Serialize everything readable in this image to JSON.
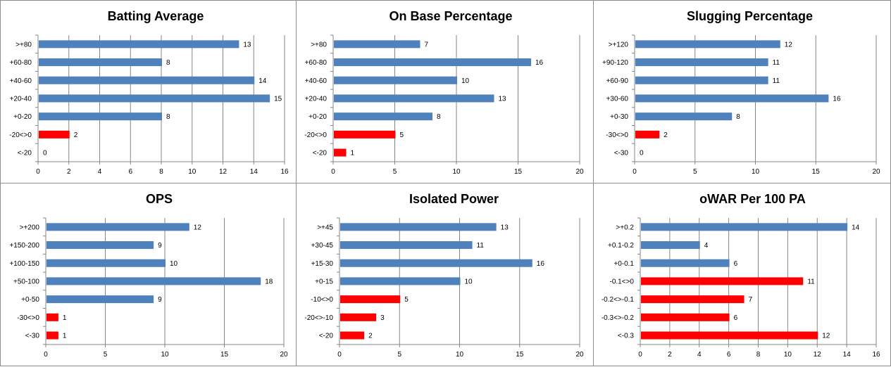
{
  "colors": {
    "positive": "#4f81bd",
    "negative": "#ff0000",
    "grid": "#868686",
    "axis": "#868686"
  },
  "chart_data": [
    {
      "type": "bar",
      "orientation": "horizontal",
      "title": "Batting Average",
      "categories": [
        ">+80",
        "+60-80",
        "+40-60",
        "+20-40",
        "+0-20",
        "-20<>0",
        "<-20"
      ],
      "values": [
        13,
        8,
        14,
        15,
        8,
        2,
        0
      ],
      "negative_from_index": 5,
      "xlim": [
        0,
        16
      ],
      "xticks": [
        0,
        2,
        4,
        6,
        8,
        10,
        12,
        14,
        16
      ],
      "grid": true
    },
    {
      "type": "bar",
      "orientation": "horizontal",
      "title": "On Base Percentage",
      "categories": [
        ">+80",
        "+60-80",
        "+40-60",
        "+20-40",
        "+0-20",
        "-20<>0",
        "<-20"
      ],
      "values": [
        7,
        16,
        10,
        13,
        8,
        5,
        1
      ],
      "negative_from_index": 5,
      "xlim": [
        0,
        20
      ],
      "xticks": [
        0,
        5,
        10,
        15,
        20
      ],
      "grid": true
    },
    {
      "type": "bar",
      "orientation": "horizontal",
      "title": "Slugging Percentage",
      "categories": [
        ">+120",
        "+90-120",
        "+60-90",
        "+30-60",
        "+0-30",
        "-30<>0",
        "<-30"
      ],
      "values": [
        12,
        11,
        11,
        16,
        8,
        2,
        0
      ],
      "negative_from_index": 5,
      "xlim": [
        0,
        20
      ],
      "xticks": [
        0,
        5,
        10,
        15,
        20
      ],
      "grid": true
    },
    {
      "type": "bar",
      "orientation": "horizontal",
      "title": "OPS",
      "categories": [
        ">+200",
        "+150-200",
        "+100-150",
        "+50-100",
        "+0-50",
        "-30<>0",
        "<-30"
      ],
      "values": [
        12,
        9,
        10,
        18,
        9,
        1,
        1
      ],
      "negative_from_index": 5,
      "xlim": [
        0,
        20
      ],
      "xticks": [
        0,
        5,
        10,
        15,
        20
      ],
      "grid": true
    },
    {
      "type": "bar",
      "orientation": "horizontal",
      "title": "Isolated Power",
      "categories": [
        ">+45",
        "+30-45",
        "+15-30",
        "+0-15",
        "-10<>0",
        "-20<>-10",
        "<-20"
      ],
      "values": [
        13,
        11,
        16,
        10,
        5,
        3,
        2
      ],
      "negative_from_index": 4,
      "xlim": [
        0,
        20
      ],
      "xticks": [
        0,
        5,
        10,
        15,
        20
      ],
      "grid": true
    },
    {
      "type": "bar",
      "orientation": "horizontal",
      "title": "oWAR Per 100 PA",
      "categories": [
        ">+0.2",
        "+0.1-0.2",
        "+0-0.1",
        "-0.1<>0",
        "-0.2<>-0.1",
        "-0.3<>-0.2",
        "<-0.3"
      ],
      "values": [
        14,
        4,
        6,
        11,
        7,
        6,
        12
      ],
      "negative_from_index": 3,
      "xlim": [
        0,
        16
      ],
      "xticks": [
        0,
        2,
        4,
        6,
        8,
        10,
        12,
        14,
        16
      ],
      "grid": true
    }
  ]
}
